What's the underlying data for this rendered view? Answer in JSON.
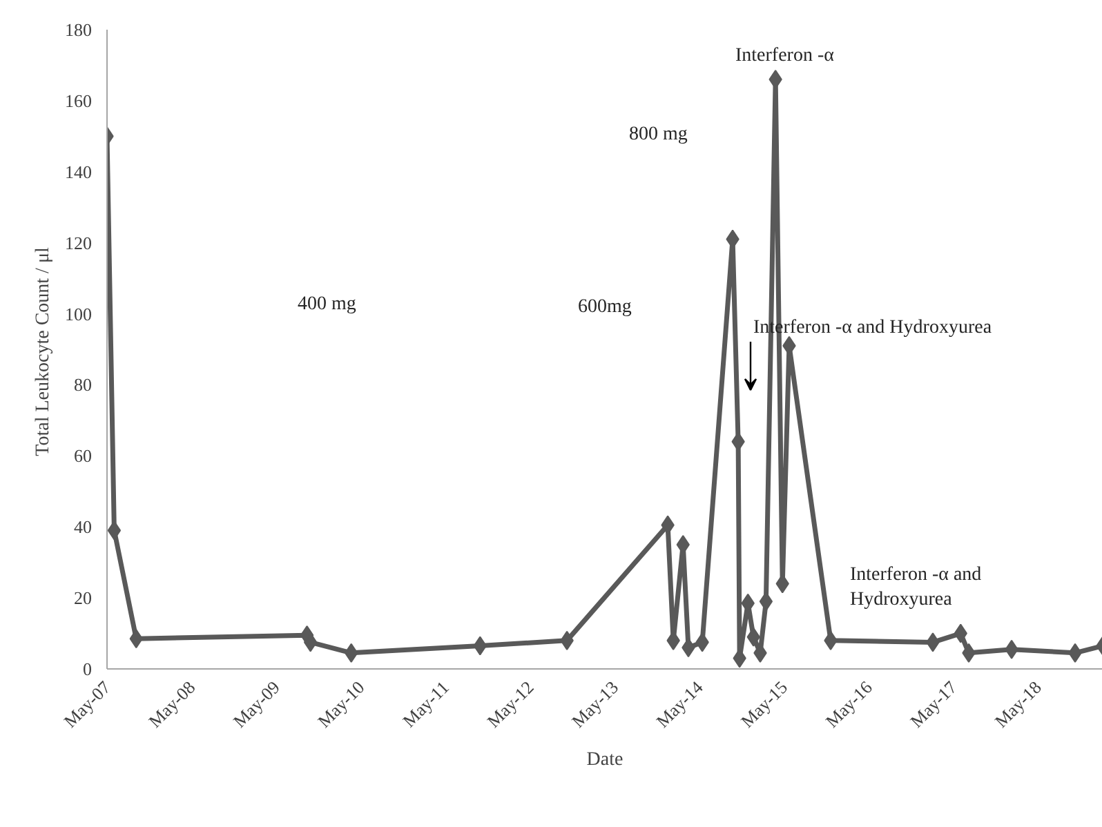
{
  "chart_data": {
    "type": "line",
    "xlabel": "Date",
    "ylabel": "Total Leukocyte Count  / μl",
    "x": [
      "2007-05-01",
      "2007-06-01",
      "2007-09-04",
      "2009-09-10",
      "2009-09-25",
      "2010-03-20",
      "2011-09-27",
      "2012-10-06",
      "2013-12-15",
      "2014-01-08",
      "2014-02-19",
      "2014-03-14",
      "2014-05-13",
      "2014-09-21",
      "2014-10-15",
      "2014-10-21",
      "2014-11-26",
      "2014-12-20",
      "2015-01-18",
      "2015-02-12",
      "2015-03-25",
      "2015-04-24",
      "2015-05-23",
      "2015-11-18",
      "2017-02-01",
      "2017-06-01",
      "2017-07-06",
      "2018-01-07",
      "2018-10-08",
      "2019-02-04"
    ],
    "series": [
      {
        "color": "#595959",
        "values": [
          150,
          39,
          8.5,
          9.5,
          7.5,
          4.5,
          6.5,
          8,
          40.5,
          8,
          35,
          6,
          7.5,
          121,
          64,
          3,
          18.5,
          9,
          4.5,
          19,
          166,
          24,
          91,
          8,
          7.5,
          10,
          4.5,
          5.5,
          4.5,
          6.5
        ]
      }
    ],
    "xlim": [
      "2007-05-01",
      "2019-02-04"
    ],
    "xticks": [
      {
        "value": "2007-05-01",
        "label": "May-07"
      },
      {
        "value": "2008-05-01",
        "label": "May-08"
      },
      {
        "value": "2009-05-01",
        "label": "May-09"
      },
      {
        "value": "2010-05-01",
        "label": "May-10"
      },
      {
        "value": "2011-05-01",
        "label": "May-11"
      },
      {
        "value": "2012-05-01",
        "label": "May-12"
      },
      {
        "value": "2013-05-01",
        "label": "May-13"
      },
      {
        "value": "2014-05-01",
        "label": "May-14"
      },
      {
        "value": "2015-05-01",
        "label": "May-15"
      },
      {
        "value": "2016-05-01",
        "label": "May-16"
      },
      {
        "value": "2017-05-01",
        "label": "May-17"
      },
      {
        "value": "2018-05-01",
        "label": "May-18"
      }
    ],
    "ylim": [
      0,
      180
    ],
    "yticks": [
      0,
      20,
      40,
      60,
      80,
      100,
      120,
      140,
      160,
      180
    ],
    "grid": false,
    "marker": "diamond",
    "line_style": "solid",
    "annotations": [
      "400 mg",
      "600mg",
      "800 mg",
      "Interferon -α",
      "Interferon -α and Hydroxyurea",
      "Interferon -α and\nHydroxyurea"
    ]
  }
}
